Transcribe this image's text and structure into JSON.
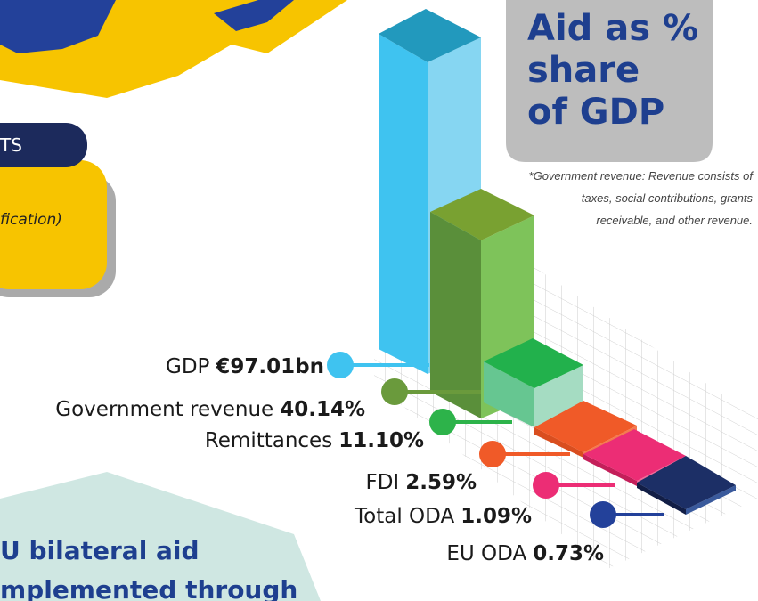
{
  "header": {
    "title_lines": [
      "Aid as %",
      "share",
      "of GDP"
    ]
  },
  "side_fragments": {
    "pill": "TS",
    "note": "fication)"
  },
  "footnote": [
    "*Government revenue:  Revenue consists of",
    "taxes, social contributions, grants",
    "receivable, and other revenue."
  ],
  "items": [
    {
      "label": "GDP",
      "value": "€97.01bn"
    },
    {
      "label": "Government revenue",
      "value": "40.14%"
    },
    {
      "label": "Remittances",
      "value": "11.10%"
    },
    {
      "label": "FDI",
      "value": "2.59%"
    },
    {
      "label": "Total ODA",
      "value": "1.09%"
    },
    {
      "label": "EU ODA",
      "value": "0.73%"
    }
  ],
  "bottom_text": [
    "U bilateral aid",
    "mplemented through"
  ]
}
